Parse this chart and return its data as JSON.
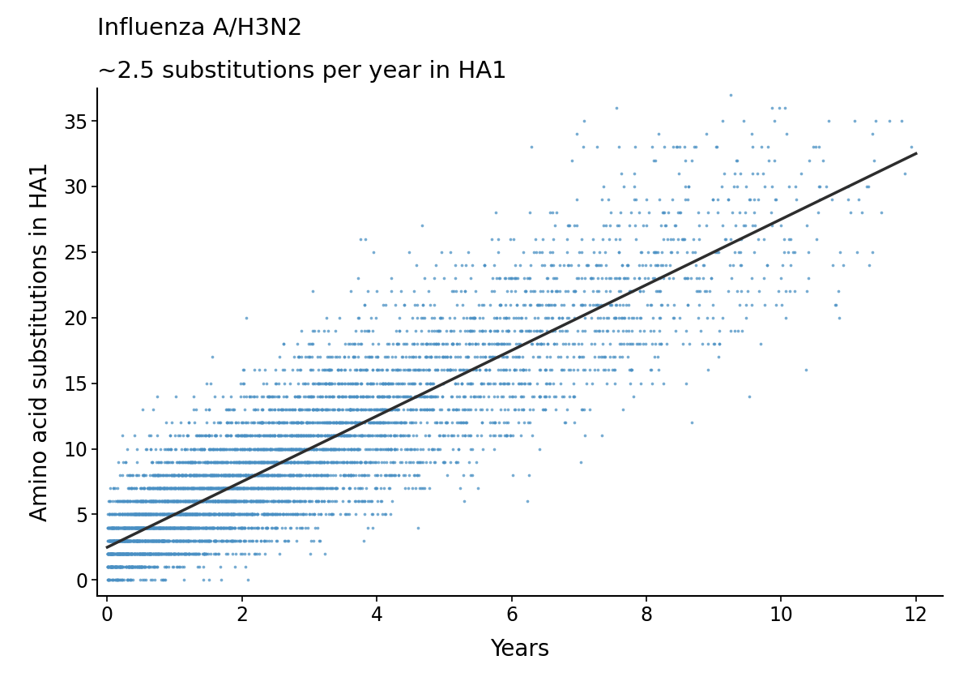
{
  "title_line1": "Influenza A/H3N2",
  "title_line2": "~2.5 substitutions per year in HA1",
  "xlabel": "Years",
  "ylabel": "Amino acid substitutions in HA1",
  "xlim": [
    -0.15,
    12.4
  ],
  "ylim": [
    -1.2,
    37.5
  ],
  "xticks": [
    0,
    2,
    4,
    6,
    8,
    10,
    12
  ],
  "yticks": [
    0,
    5,
    10,
    15,
    20,
    25,
    30,
    35
  ],
  "dot_color": "#4a90c4",
  "line_color": "#2d2d2d",
  "line_slope": 2.5,
  "line_intercept": 2.5,
  "line_x0": 0.0,
  "line_x1": 12.0,
  "dot_size": 7,
  "dot_alpha": 0.75,
  "seed": 123,
  "background_color": "#ffffff",
  "title_fontsize": 21,
  "axis_label_fontsize": 20,
  "tick_fontsize": 17
}
